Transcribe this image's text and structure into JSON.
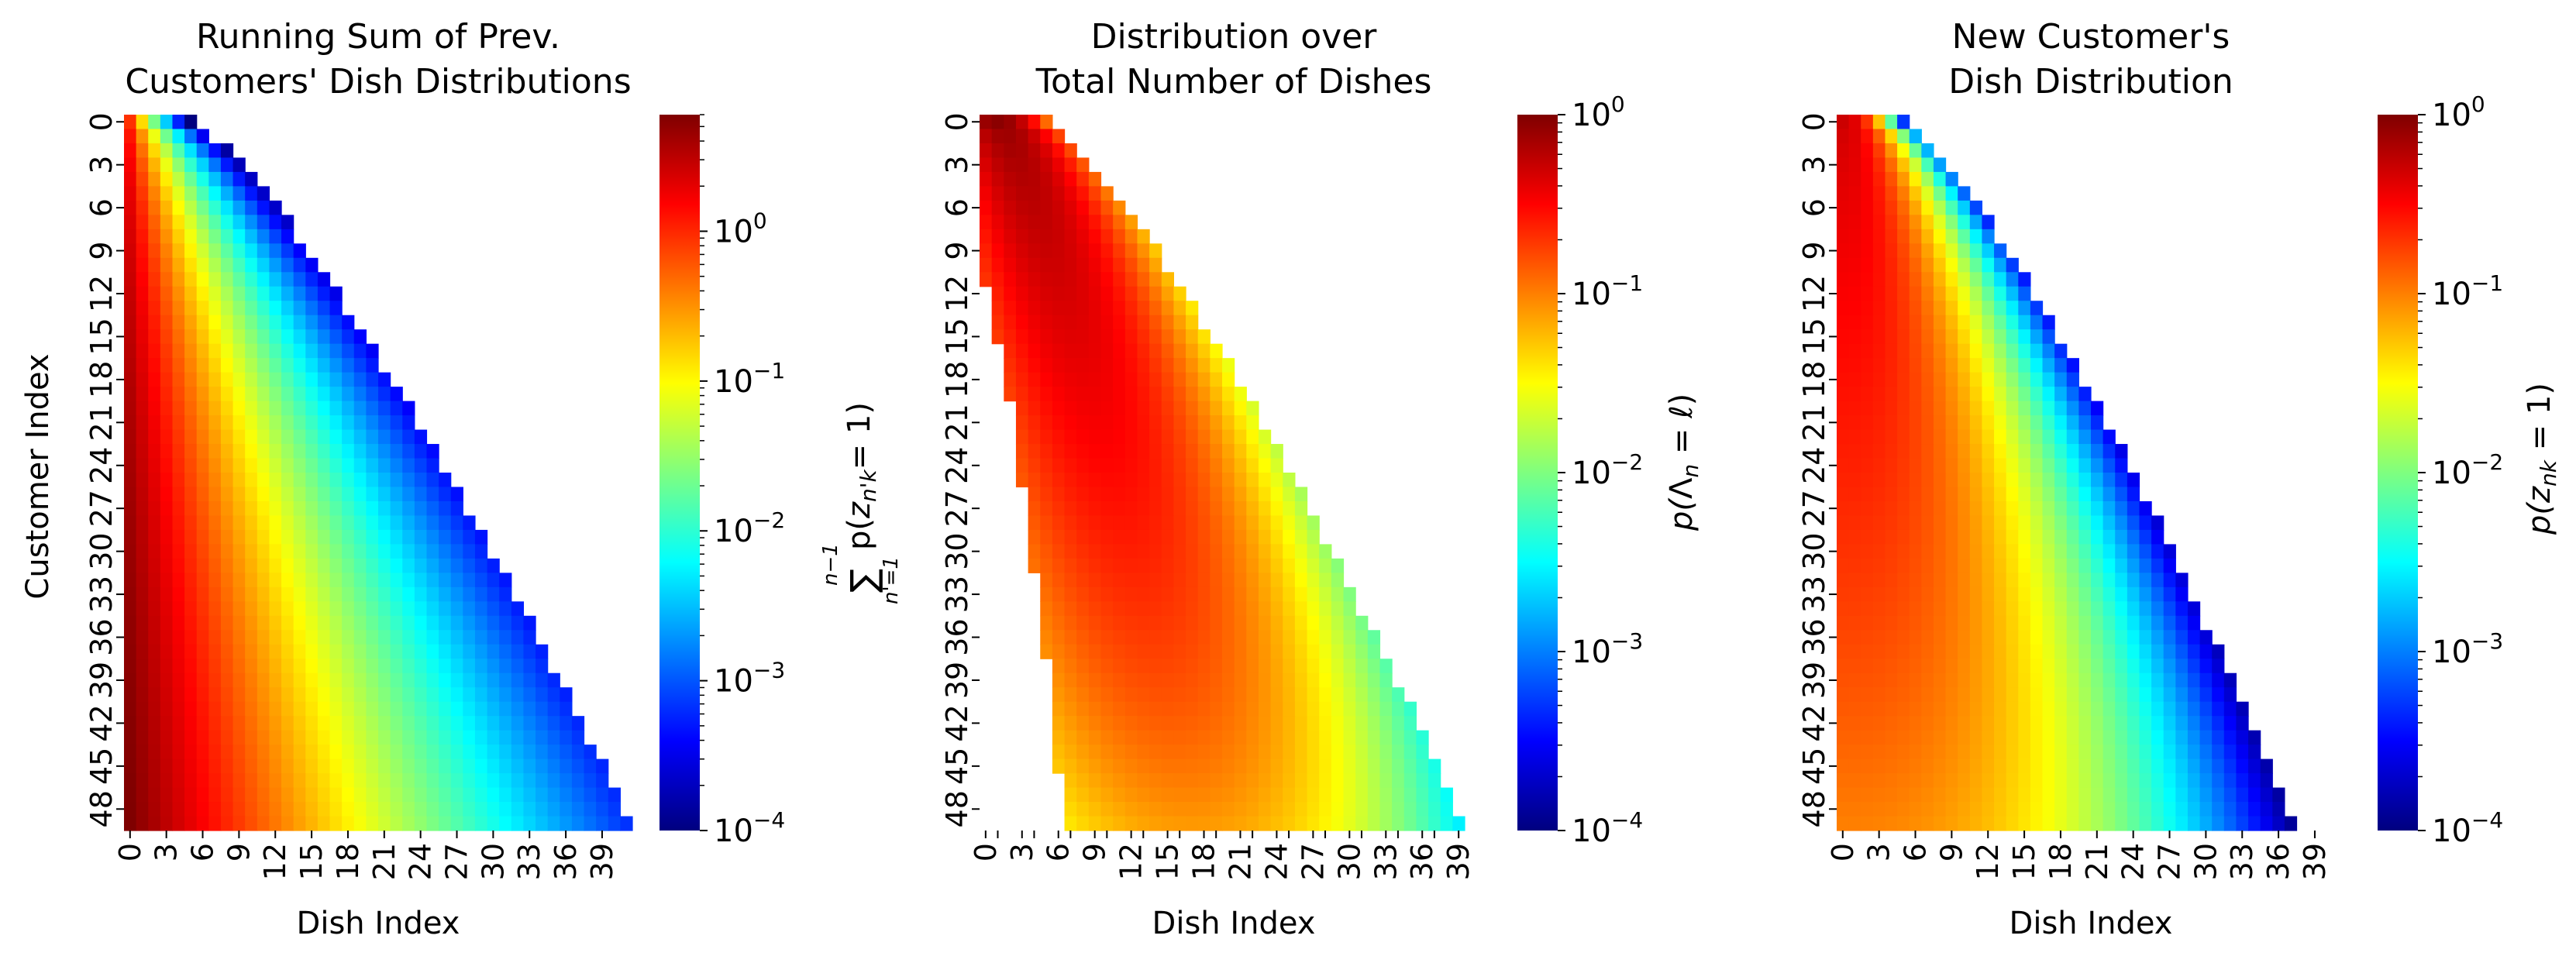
{
  "figure": {
    "colorscale": "jet",
    "cmap_stops": [
      "#00007f",
      "#0000ff",
      "#007fff",
      "#00ffff",
      "#7fff7f",
      "#ffff00",
      "#ff7f00",
      "#ff0000",
      "#7f0000"
    ]
  },
  "chart_data": [
    {
      "type": "heatmap",
      "title_lines": [
        "Running Sum of Prev.",
        "Customers' Dish Distributions"
      ],
      "xlabel": "Dish Index",
      "ylabel": "Customer Index",
      "n_rows": 50,
      "n_cols": 42,
      "xticklabels": [
        "0",
        "3",
        "6",
        "9",
        "12",
        "15",
        "18",
        "21",
        "24",
        "27",
        "30",
        "33",
        "36",
        "39"
      ],
      "yticklabels": [
        "0",
        "3",
        "6",
        "9",
        "12",
        "15",
        "18",
        "21",
        "24",
        "27",
        "30",
        "33",
        "36",
        "39",
        "42",
        "45",
        "48"
      ],
      "color_scale": "log",
      "colorbar": {
        "label": "Σ_{n'=1}^{n−1} p(z_{n'k} = 1)",
        "label_parts": {
          "sum": "∑",
          "upper": "n−1",
          "lower": "n'=1",
          "expr_p": "p(",
          "expr_z": "z",
          "expr_sub": "n'k",
          "expr_tail": "= 1)"
        },
        "range": [
          0.0001,
          6
        ],
        "tick_values": [
          1,
          0.1,
          0.01,
          0.001,
          0.0001
        ],
        "tick_labels": [
          {
            "base": "10",
            "exp": "0"
          },
          {
            "base": "10",
            "exp": "−1"
          },
          {
            "base": "10",
            "exp": "−2"
          },
          {
            "base": "10",
            "exp": "−3"
          },
          {
            "base": "10",
            "exp": "−4"
          }
        ]
      },
      "model": {
        "support_edge_row0": 5,
        "support_edge_growth_per_sqrt_row": 5.4,
        "row0_peak_value": 0.9,
        "row49_peak_value": 6,
        "decay_profile": "exponential"
      }
    },
    {
      "type": "heatmap",
      "title_lines": [
        "Distribution over",
        "Total Number of Dishes"
      ],
      "xlabel": "Dish Index",
      "ylabel": "",
      "n_rows": 50,
      "n_cols": 40,
      "xticklabels": [
        "0",
        "3",
        "6",
        "9",
        "12",
        "15",
        "18",
        "21",
        "24",
        "27",
        "30",
        "33",
        "36",
        "39"
      ],
      "extra_xticklabels": [
        "1",
        "4",
        "7",
        "10",
        "13",
        "16",
        "19",
        "22",
        "25",
        "28",
        "31",
        "34",
        "37",
        "40"
      ],
      "yticklabels": [
        "0",
        "3",
        "6",
        "9",
        "12",
        "15",
        "18",
        "21",
        "24",
        "27",
        "30",
        "33",
        "36",
        "39",
        "42",
        "45",
        "48"
      ],
      "color_scale": "log",
      "colorbar": {
        "label": "p(Λ_n = ℓ)",
        "label_parts": {
          "p": "p(",
          "lambda": "Λ",
          "sub": "n",
          "tail": " = ℓ)"
        },
        "range": [
          0.0001,
          1
        ],
        "tick_values": [
          1,
          0.1,
          0.01,
          0.001,
          0.0001
        ],
        "tick_labels": [
          {
            "base": "10",
            "exp": "0"
          },
          {
            "base": "10",
            "exp": "−1"
          },
          {
            "base": "10",
            "exp": "−2"
          },
          {
            "base": "10",
            "exp": "−3"
          },
          {
            "base": "10",
            "exp": "−4"
          }
        ]
      },
      "model": {
        "distribution": "poisson-like",
        "row0_mode": 1,
        "row49_mode": 17,
        "support_left_start_row": 12,
        "support_left_at_row49": 7,
        "support_right_at_row49": 40,
        "row0_peak_value": 0.9,
        "row49_peak_value": 0.08
      }
    },
    {
      "type": "heatmap",
      "title_lines": [
        "New Customer's",
        "Dish Distribution"
      ],
      "xlabel": "Dish Index",
      "ylabel": "",
      "n_rows": 50,
      "n_cols": 42,
      "xticklabels": [
        "0",
        "3",
        "6",
        "9",
        "12",
        "15",
        "18",
        "21",
        "24",
        "27",
        "30",
        "33",
        "36",
        "39"
      ],
      "yticklabels": [
        "0",
        "3",
        "6",
        "9",
        "12",
        "15",
        "18",
        "21",
        "24",
        "27",
        "30",
        "33",
        "36",
        "39",
        "42",
        "45",
        "48"
      ],
      "color_scale": "log",
      "colorbar": {
        "label": "p(z_nk = 1)",
        "label_parts": {
          "p": "p(",
          "z": "z",
          "sub": "nk",
          "tail": " = 1)"
        },
        "range": [
          0.0001,
          1
        ],
        "tick_values": [
          1,
          0.1,
          0.01,
          0.001,
          0.0001
        ],
        "tick_labels": [
          {
            "base": "10",
            "exp": "0"
          },
          {
            "base": "10",
            "exp": "−1"
          },
          {
            "base": "10",
            "exp": "−2"
          },
          {
            "base": "10",
            "exp": "−3"
          },
          {
            "base": "10",
            "exp": "−4"
          }
        ]
      },
      "model": {
        "support_edge_row0": 5,
        "support_edge_growth_per_sqrt_row": 5.0,
        "row0_first_value": 0.5,
        "row49_first_value": 0.1,
        "row49_mid_value": 0.04
      }
    }
  ]
}
